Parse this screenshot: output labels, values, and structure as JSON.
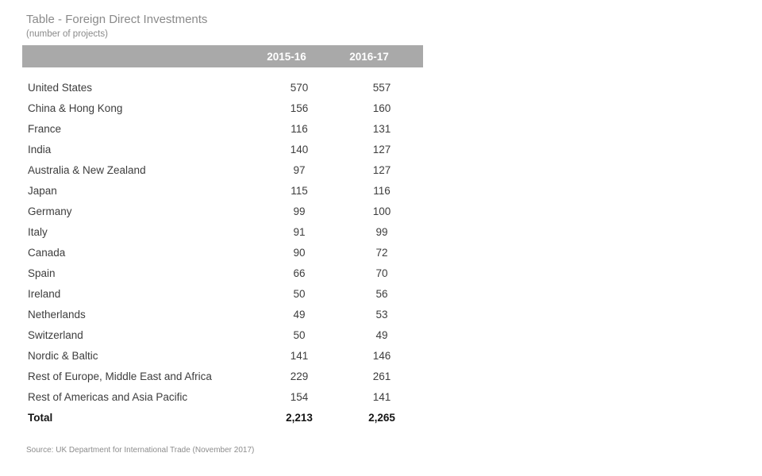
{
  "page": {
    "title": "Table - Foreign Direct Investments",
    "subtitle": "(number of projects)",
    "source": "Source: UK Department for International Trade (November 2017)"
  },
  "chart_data": {
    "type": "table",
    "title": "Table - Foreign Direct Investments",
    "subtitle": "(number of projects)",
    "columns": [
      "2015-16",
      "2016-17"
    ],
    "rows": [
      {
        "label": "United States",
        "values": [
          "570",
          "557"
        ]
      },
      {
        "label": "China & Hong Kong",
        "values": [
          "156",
          "160"
        ]
      },
      {
        "label": "France",
        "values": [
          "116",
          "131"
        ]
      },
      {
        "label": "India",
        "values": [
          "140",
          "127"
        ]
      },
      {
        "label": "Australia & New Zealand",
        "values": [
          "97",
          "127"
        ]
      },
      {
        "label": "Japan",
        "values": [
          "115",
          "116"
        ]
      },
      {
        "label": "Germany",
        "values": [
          "99",
          "100"
        ]
      },
      {
        "label": "Italy",
        "values": [
          "91",
          "99"
        ]
      },
      {
        "label": "Canada",
        "values": [
          "90",
          "72"
        ]
      },
      {
        "label": "Spain",
        "values": [
          "66",
          "70"
        ]
      },
      {
        "label": "Ireland",
        "values": [
          "50",
          "56"
        ]
      },
      {
        "label": "Netherlands",
        "values": [
          "49",
          "53"
        ]
      },
      {
        "label": "Switzerland",
        "values": [
          "50",
          "49"
        ]
      },
      {
        "label": "Nordic & Baltic",
        "values": [
          "141",
          "146"
        ]
      },
      {
        "label": "Rest of Europe, Middle East and Africa",
        "values": [
          "229",
          "261"
        ]
      },
      {
        "label": "Rest of Americas and Asia Pacific",
        "values": [
          "154",
          "141"
        ]
      }
    ],
    "total": {
      "label": "Total",
      "values": [
        "2,213",
        "2,265"
      ]
    },
    "source": "Source: UK Department for International Trade (November 2017)"
  },
  "colors": {
    "header_bar": "#a9a9a9",
    "header_text": "#ffffff",
    "body_text": "#3d3d3d",
    "total_text": "#141414",
    "muted_text": "#8a8a8a",
    "background": "#ffffff"
  }
}
